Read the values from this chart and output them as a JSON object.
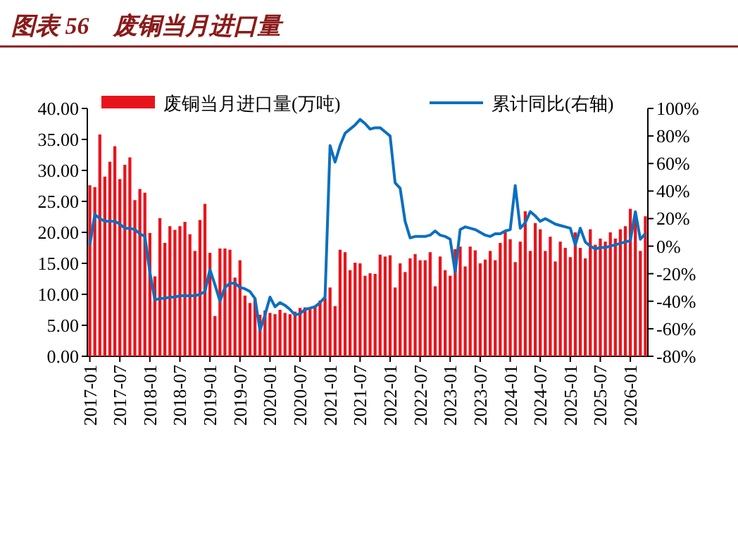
{
  "chart_data": {
    "type": "bar",
    "title": "图表 56　废铜当月进口量",
    "legend": "top",
    "categories": [
      "2017-01",
      null,
      null,
      null,
      null,
      null,
      "2017-07",
      null,
      null,
      null,
      null,
      null,
      "2018-01",
      null,
      null,
      null,
      null,
      null,
      "2018-07",
      null,
      null,
      null,
      null,
      null,
      "2019-01",
      null,
      null,
      null,
      null,
      null,
      "2019-07",
      null,
      null,
      null,
      null,
      null,
      "2020-01",
      null,
      null,
      null,
      null,
      null,
      "2020-07",
      null,
      null,
      null,
      null,
      null,
      "2021-01",
      null,
      null,
      null,
      null,
      null,
      "2021-07",
      null,
      null,
      null,
      null,
      null,
      "2022-01",
      null,
      null,
      null,
      null,
      null,
      "2022-07",
      null,
      null,
      null,
      null,
      null,
      "2023-01",
      null,
      null,
      null,
      null,
      null,
      "2023-07",
      null,
      null,
      null,
      null,
      null,
      "2024-01",
      null,
      null,
      null,
      null,
      null,
      "2024-07",
      null,
      null,
      null,
      null,
      null,
      "2025-01",
      null,
      null,
      null,
      null,
      null,
      "2025-07",
      null,
      null,
      null,
      null,
      null,
      "2026-01",
      null,
      null,
      null
    ],
    "ylim": [
      0,
      40
    ],
    "yticks": [
      {
        "value": 0,
        "label": "0.00"
      },
      {
        "value": 5,
        "label": "5.00"
      },
      {
        "value": 10,
        "label": "10.00"
      },
      {
        "value": 15,
        "label": "15.00"
      },
      {
        "value": 20,
        "label": "20.00"
      },
      {
        "value": 25,
        "label": "25.00"
      },
      {
        "value": 30,
        "label": "30.00"
      },
      {
        "value": 35,
        "label": "35.00"
      },
      {
        "value": 40,
        "label": "40.00"
      }
    ],
    "y2lim": [
      -80,
      100
    ],
    "y2ticks": [
      {
        "value": -80,
        "label": "-80%"
      },
      {
        "value": -60,
        "label": "-60%"
      },
      {
        "value": -40,
        "label": "-40%"
      },
      {
        "value": -20,
        "label": "-20%"
      },
      {
        "value": 0,
        "label": "0%"
      },
      {
        "value": 20,
        "label": "20%"
      },
      {
        "value": 40,
        "label": "40%"
      },
      {
        "value": 60,
        "label": "60%"
      },
      {
        "value": 80,
        "label": "80%"
      },
      {
        "value": 100,
        "label": "100%"
      }
    ],
    "series": [
      {
        "name": "废铜当月进口量(万吨)",
        "color": "#e8141c",
        "values": [
          27.6,
          27.3,
          35.8,
          29.0,
          31.4,
          33.9,
          28.6,
          30.9,
          32.1,
          25.2,
          27.0,
          26.4,
          19.9,
          12.9,
          22.3,
          18.3,
          21.0,
          20.4,
          21.0,
          21.7,
          19.7,
          17.0,
          22.0,
          24.6,
          16.7,
          6.5,
          17.4,
          17.4,
          17.2,
          12.7,
          15.5,
          9.8,
          8.6,
          9.4,
          6.7,
          7.4,
          7.0,
          6.8,
          7.5,
          7.0,
          6.8,
          7.2,
          7.8,
          7.9,
          7.6,
          8.2,
          9.0,
          9.4,
          11.1,
          8.1,
          17.2,
          16.8,
          13.9,
          15.1,
          15.0,
          13.0,
          13.4,
          13.3,
          16.4,
          16.1,
          16.3,
          11.1,
          15.0,
          13.6,
          15.8,
          16.5,
          15.5,
          15.5,
          16.8,
          11.3,
          16.1,
          13.9,
          13.0,
          17.3,
          17.7,
          14.5,
          17.7,
          17.1,
          15.0,
          15.6,
          17.0,
          15.5,
          18.3,
          20.1,
          18.9,
          15.2,
          18.5,
          23.4,
          17.0,
          21.5,
          20.5,
          17.0,
          19.3,
          15.3,
          18.5,
          17.5,
          16.0,
          20.0,
          17.5,
          15.8,
          20.5,
          18.0,
          19.0,
          18.5,
          20.0,
          19.0,
          20.5,
          21.0,
          23.8,
          23.2,
          17.0,
          22.6
        ]
      },
      {
        "name": "累计同比(右轴)",
        "type": "line",
        "axis": "y2",
        "color": "#0b6fc0",
        "values": [
          1,
          23,
          20,
          18,
          18,
          18,
          16,
          13,
          13,
          12,
          9,
          7,
          -19,
          -39,
          -38,
          -38,
          -37,
          -37,
          -36,
          -36,
          -36,
          -36,
          -35,
          -33,
          -17,
          -28,
          -40,
          -30,
          -27,
          -27,
          -30,
          -31,
          -33,
          -38,
          -61,
          -50,
          -37,
          -44,
          -41,
          -43,
          -46,
          -50,
          -49,
          -46,
          -45,
          -44,
          -41,
          -37,
          73,
          61,
          73,
          82,
          85,
          88,
          92,
          89,
          85,
          86,
          86,
          83,
          80,
          46,
          42,
          18,
          6,
          7,
          7,
          7,
          8,
          11,
          8,
          7,
          5,
          -19,
          12,
          14,
          13,
          12,
          10,
          8,
          7,
          9,
          9,
          11,
          12,
          44,
          13,
          17,
          25,
          22,
          18,
          20,
          18,
          16,
          15,
          14,
          13,
          1,
          13,
          3,
          0,
          -2,
          -1,
          -1,
          0,
          1,
          2,
          3,
          4,
          25,
          5,
          9
        ]
      }
    ]
  }
}
